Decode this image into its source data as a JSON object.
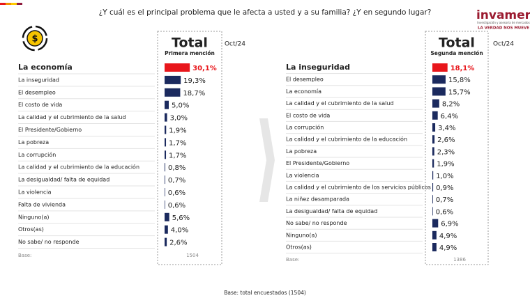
{
  "question": "¿Y cuál es el principal problema que le afecta a usted y a su familia? ¿Y en segundo lugar?",
  "logo": {
    "name": "invamer",
    "tagline_small": "Investigación y asesoría de mercados",
    "slogan": "LA VERDAD NOS MUEVE"
  },
  "footer": "Base: total encuestados (1504)",
  "chart_data": [
    {
      "type": "hbar",
      "title": "Total",
      "date": "Oct/24",
      "subtitle": "Primera mención",
      "categories": [
        "La economía",
        "La inseguridad",
        "El desempleo",
        "El costo de vida",
        "La calidad y el cubrimiento de la salud",
        "El Presidente/Gobierno",
        "La pobreza",
        "La corrupción",
        "La calidad y el cubrimiento de la educación",
        "La desigualdad/ falta de equidad",
        "La violencia",
        "Falta de vivienda",
        "Ninguno(a)",
        "Otros(as)",
        "No sabe/ no responde"
      ],
      "values": [
        30.1,
        19.3,
        18.7,
        5.0,
        3.0,
        1.9,
        1.7,
        1.7,
        0.8,
        0.7,
        0.6,
        0.6,
        5.6,
        4.0,
        2.6
      ],
      "value_labels": [
        "30,1%",
        "19,3%",
        "18,7%",
        "5,0%",
        "3,0%",
        "1,9%",
        "1,7%",
        "1,7%",
        "0,8%",
        "0,7%",
        "0,6%",
        "0,6%",
        "5,6%",
        "4,0%",
        "2,6%"
      ],
      "color": "#1b2a5e",
      "highlight_color": "#e8161b",
      "base_label": "Base:",
      "base_value": 1504
    },
    {
      "type": "hbar",
      "title": "Total",
      "date": "Oct/24",
      "subtitle": "Segunda mención",
      "categories": [
        "La inseguridad",
        "El desempleo",
        "La economía",
        "La calidad y el cubrimiento de la salud",
        "El costo de vida",
        "La corrupción",
        "La calidad y el cubrimiento de la educación",
        "La pobreza",
        "El Presidente/Gobierno",
        "La violencia",
        "La calidad y el cubrimiento de los servicios públicos",
        "La niñez desamparada",
        "La desigualdad/ falta de equidad",
        "No sabe/ no responde",
        "Ninguno(a)",
        "Otros(as)"
      ],
      "values": [
        18.1,
        15.8,
        15.7,
        8.2,
        6.4,
        3.4,
        2.6,
        2.3,
        1.9,
        1.0,
        0.9,
        0.7,
        0.6,
        6.9,
        4.9,
        4.9
      ],
      "value_labels": [
        "18,1%",
        "15,8%",
        "15,7%",
        "8,2%",
        "6,4%",
        "3,4%",
        "2,6%",
        "2,3%",
        "1,9%",
        "1,0%",
        "0,9%",
        "0,7%",
        "0,6%",
        "6,9%",
        "4,9%",
        "4,9%"
      ],
      "color": "#1b2a5e",
      "highlight_color": "#e8161b",
      "base_label": "Base:",
      "base_value": 1386
    }
  ]
}
